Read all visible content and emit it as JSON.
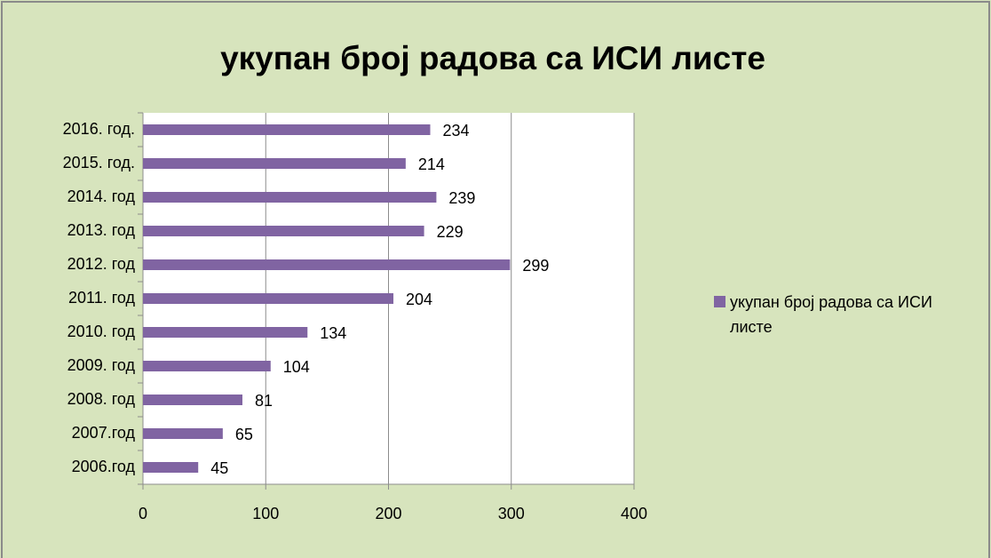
{
  "chart_data": {
    "type": "bar",
    "orientation": "horizontal",
    "title": "укупан број радова са ИСИ листе",
    "categories": [
      "2016. год.",
      "2015. год.",
      "2014. год",
      "2013. год",
      "2012. год",
      "2011. год",
      "2010. год",
      "2009. год",
      "2008. год",
      "2007.год",
      "2006.год"
    ],
    "series": [
      {
        "name": "укупан број радова са ИСИ листе",
        "color": "#8064a2",
        "values": [
          234,
          214,
          239,
          229,
          299,
          204,
          134,
          104,
          81,
          65,
          45
        ]
      }
    ],
    "xlim": [
      0,
      400
    ],
    "xticks": [
      0,
      100,
      200,
      300,
      400
    ],
    "grid": true,
    "legend": "right"
  }
}
